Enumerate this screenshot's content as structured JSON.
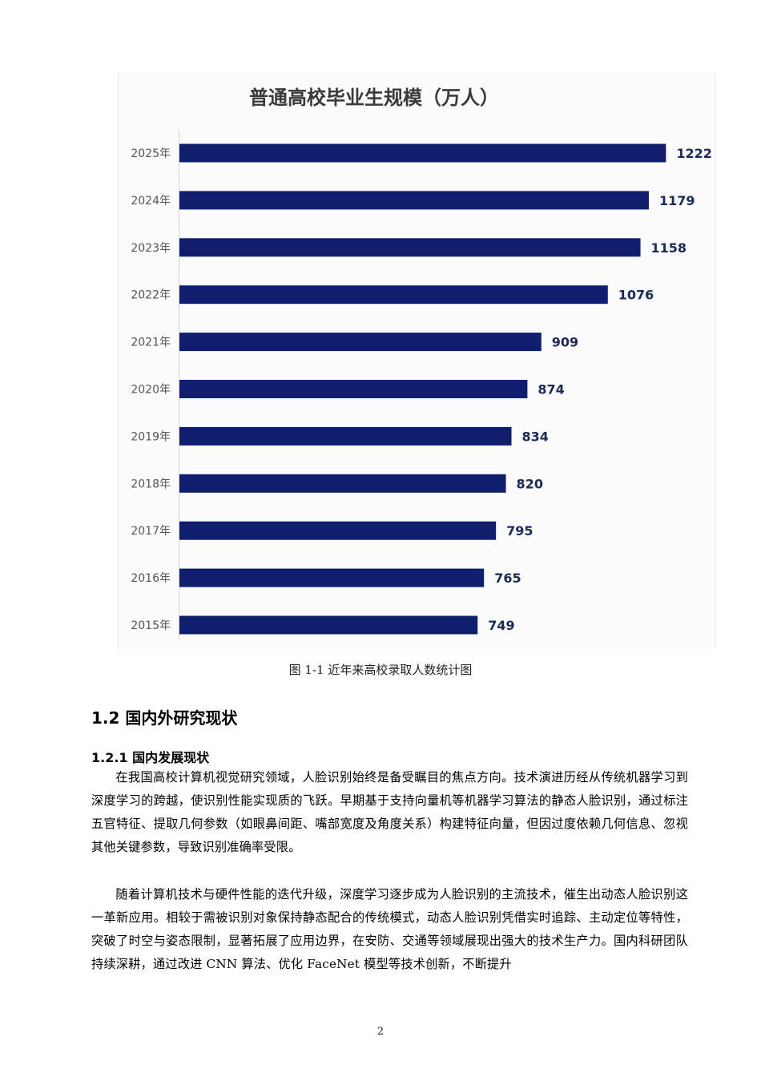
{
  "figure": {
    "caption": "图 1-1 近年来高校录取人数统计图"
  },
  "chart_data": {
    "type": "bar",
    "orientation": "horizontal",
    "title": "普通高校毕业生规模（万人）",
    "categories": [
      "2025年",
      "2024年",
      "2023年",
      "2022年",
      "2021年",
      "2020年",
      "2019年",
      "2018年",
      "2017年",
      "2016年",
      "2015年"
    ],
    "values": [
      1222,
      1179,
      1158,
      1076,
      909,
      874,
      834,
      820,
      795,
      765,
      749
    ],
    "bar_color": "#0f1f6e",
    "xlabel": "",
    "ylabel": "",
    "xlim": [
      0,
      1340
    ],
    "grid": false,
    "data_labels": true
  },
  "section": {
    "heading": "1.2 国内外研究现状",
    "subheading": "1.2.1 国内发展现状",
    "paragraphs": [
      "在我国高校计算机视觉研究领域，人脸识别始终是备受瞩目的焦点方向。技术演进历经从传统机器学习到深度学习的跨越，使识别性能实现质的飞跃。早期基于支持向量机等机器学习算法的静态人脸识别，通过标注五官特征、提取几何参数（如眼鼻间距、嘴部宽度及角度关系）构建特征向量，但因过度依赖几何信息、忽视其他关键参数，导致识别准确率受限。",
      "随着计算机技术与硬件性能的迭代升级，深度学习逐步成为人脸识别的主流技术，催生出动态人脸识别这一革新应用。相较于需被识别对象保持静态配合的传统模式，动态人脸识别凭借实时追踪、主动定位等特性，突破了时空与姿态限制，显著拓展了应用边界，在安防、交通等领域展现出强大的技术生产力。国内科研团队持续深耕，通过改进 CNN 算法、优化 FaceNet 模型等技术创新，不断提升"
    ]
  },
  "page_number": "2"
}
